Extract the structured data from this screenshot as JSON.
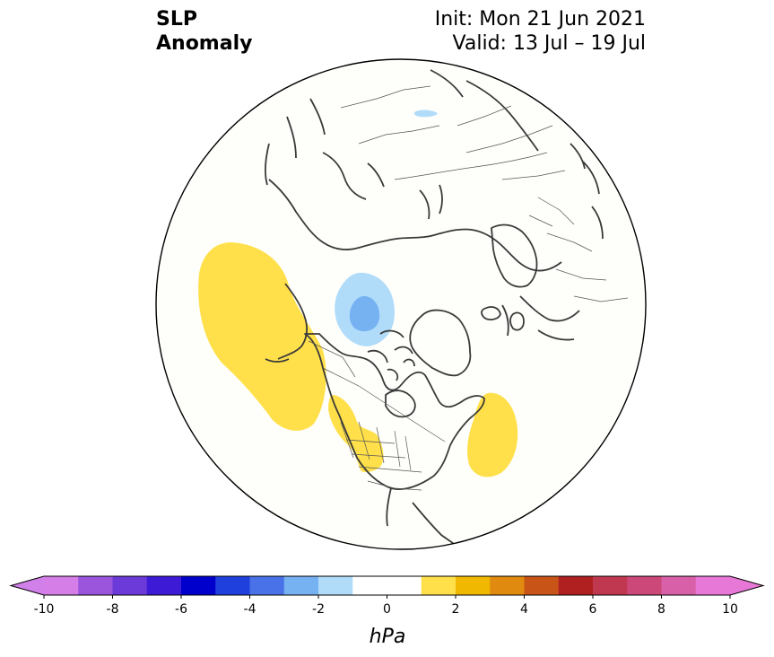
{
  "header": {
    "title_line1": "SLP",
    "title_line2": "Anomaly",
    "init": "Init: Mon 21 Jun 2021",
    "valid": "Valid: 13 Jul – 19 Jul"
  },
  "colorbar": {
    "unit": "hPa",
    "min": -10,
    "max": 10,
    "step": 1,
    "extend": "both",
    "tick_values": [
      -10,
      -8,
      -6,
      -4,
      -2,
      0,
      2,
      4,
      6,
      8,
      10
    ],
    "tick_labels": [
      "-10",
      "-8",
      "-6",
      "-4",
      "-2",
      "0",
      "2",
      "4",
      "6",
      "8",
      "10"
    ],
    "under_color": "#d080e8",
    "over_color": "#e878d8",
    "colors": [
      "#d67ee8",
      "#9b55dd",
      "#6b3ad8",
      "#3d1ad6",
      "#0000cc",
      "#2040dd",
      "#4a72e8",
      "#76b2f2",
      "#b0dcfa",
      "#ffffff",
      "#ffffff",
      "#ffe04a",
      "#f0b800",
      "#e08a10",
      "#c85418",
      "#b02020",
      "#c03850",
      "#cc4878",
      "#d860a8",
      "#e878d8"
    ]
  },
  "map": {
    "projection": "north-polar-stereographic",
    "ocean_color": "#fefefb",
    "coastline_color": "#3a3a3a",
    "anomalies": [
      {
        "region": "northeast-pacific",
        "sign": "positive",
        "color": "#ffe04a"
      },
      {
        "region": "western-us-canada",
        "sign": "positive",
        "color": "#ffe04a"
      },
      {
        "region": "northwest-atlantic",
        "sign": "positive",
        "color": "#ffe04a"
      },
      {
        "region": "beaufort-sea",
        "sign": "negative",
        "color": "#b0dcfa"
      },
      {
        "region": "beaufort-sea-core",
        "sign": "negative",
        "color": "#76b2f2"
      },
      {
        "region": "northern-eurasia",
        "sign": "negative",
        "color": "#b0dcfa"
      }
    ]
  }
}
